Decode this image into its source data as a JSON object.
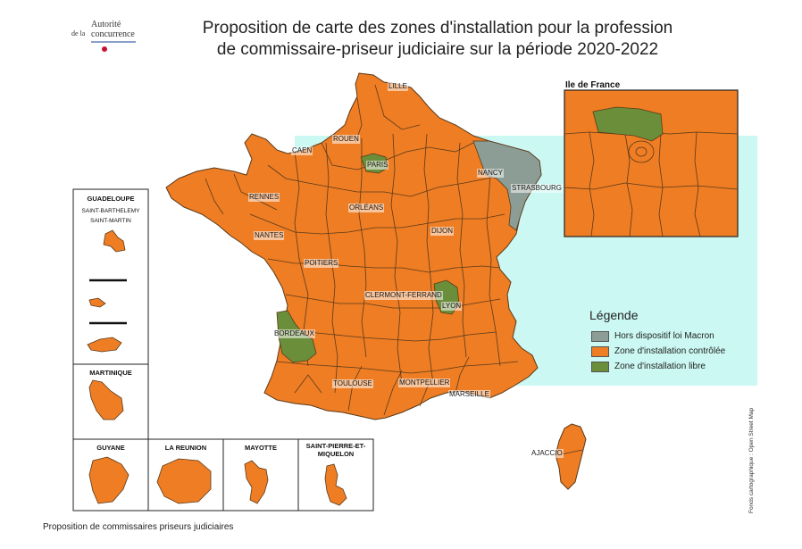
{
  "logo": {
    "line1": "Autorité",
    "line2": "de la",
    "line3": "concurrence"
  },
  "title": {
    "line1": "Proposition de carte des zones d'installation pour la profession",
    "line2": "de commissaire-priseur judiciaire sur la période 2020-2022"
  },
  "cities": {
    "lille": "LILLE",
    "rouen": "ROUEN",
    "caen": "CAEN",
    "paris": "PARIS",
    "nancy": "NANCY",
    "strasbourg": "STRASBOURG",
    "rennes": "RENNES",
    "orleans": "ORLÉANS",
    "nantes": "NANTES",
    "dijon": "DIJON",
    "poitiers": "POITIERS",
    "clermont": "CLERMONT-FERRAND",
    "lyon": "LYON",
    "bordeaux": "BORDEAUX",
    "toulouse": "TOULOUSE",
    "montpellier": "MONTPELLIER",
    "marseille": "MARSEILLE",
    "ajaccio": "AJACCIO"
  },
  "overseas": {
    "guadeloupe": "GUADELOUPE",
    "guadeloupe_sub1": "SAINT-BARTHELEMY",
    "guadeloupe_sub2": "SAINT-MARTIN",
    "martinique": "MARTINIQUE",
    "guyane": "GUYANE",
    "reunion": "LA REUNION",
    "mayotte": "MAYOTTE",
    "spm": "SAINT-PIERRE-ET-MIQUELON"
  },
  "inset_title": "Ile de France",
  "legend": {
    "title": "Légende",
    "items": [
      {
        "label": "Hors dispositif loi Macron",
        "color": "#8c9d95"
      },
      {
        "label": "Zone d'installation contrôlée",
        "color": "#ee7d24"
      },
      {
        "label": "Zone d'installation libre",
        "color": "#6b8e3a"
      }
    ]
  },
  "colors": {
    "orange": "#ee7d24",
    "green": "#6b8e3a",
    "grey": "#8c9d95",
    "border": "#5a3a1a",
    "highlight": "#b9f5ee"
  },
  "credit": "Fonds cartographique : Open Street Map",
  "caption": "Proposition de commissaires priseurs judiciaires"
}
